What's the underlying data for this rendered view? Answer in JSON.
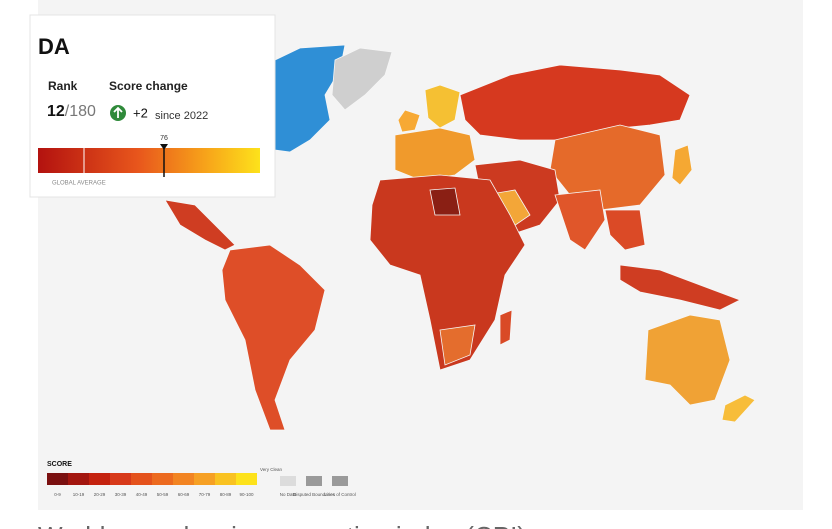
{
  "card": {
    "country": "DA",
    "rank_label": "Rank",
    "rank": "12",
    "rank_total": "/180",
    "change_label": "Score change",
    "change": "+2",
    "change_since": "since 2022",
    "marker": "76",
    "average_label": "GLOBAL AVERAGE"
  },
  "legend": {
    "title": "SCORE",
    "ranges": [
      "0-9",
      "10-19",
      "20-29",
      "30-39",
      "40-49",
      "50-59",
      "60-69",
      "70-79",
      "80-89",
      "90-100"
    ],
    "clean_label": "Very Clean",
    "extra": [
      "No Data",
      "Disputed Boundaries",
      "Lines of Control"
    ]
  },
  "caption": "World map showing corruption index (CPI)"
}
